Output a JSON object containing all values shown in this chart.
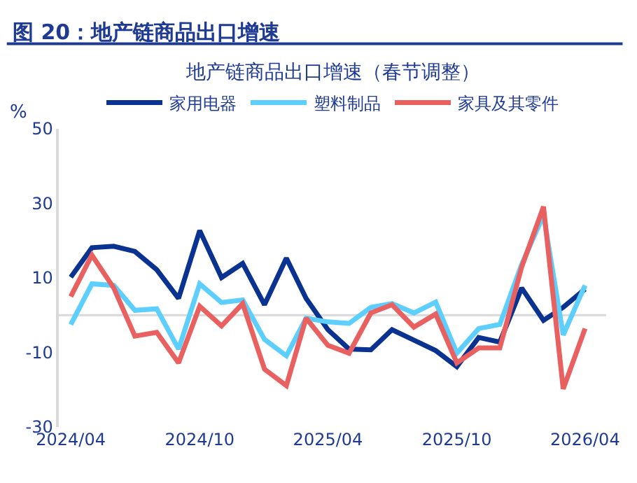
{
  "chart_data": {
    "type": "line",
    "title": "图 20：地产链商品出口增速",
    "subtitle": "地产链商品出口增速（春节调整）",
    "ylabel": "%",
    "x": [
      "2024-04",
      "2024-05",
      "2024-06",
      "2024-07",
      "2024-08",
      "2024-09",
      "2024-10",
      "2024-11",
      "2024-12",
      "2025-01",
      "2025-02",
      "2025-03",
      "2025-04",
      "2025-05",
      "2025-06",
      "2025-07",
      "2025-08",
      "2025-09",
      "2025-10",
      "2025-11",
      "2025-12",
      "2026-01",
      "2026-02",
      "2026-03",
      "2026-04"
    ],
    "series": [
      {
        "name": "家用电器",
        "color": "#0a3290",
        "values": [
          10.2,
          18.1,
          18.5,
          17.1,
          12.2,
          4.5,
          22.7,
          10.1,
          13.9,
          2.8,
          15.3,
          4.5,
          -3.9,
          -9.1,
          -9.3,
          -3.9,
          -6.7,
          -9.5,
          -13.8,
          -6.0,
          -7.2,
          7.3,
          -1.4,
          2.1,
          7.0
        ]
      },
      {
        "name": "塑料制品",
        "color": "#5ccfff",
        "values": [
          -2.5,
          8.4,
          8.0,
          1.3,
          1.7,
          -9.1,
          8.4,
          3.4,
          4.1,
          -6.5,
          -10.9,
          -0.8,
          -1.8,
          -2.2,
          2.1,
          3.1,
          0.6,
          3.5,
          -10.2,
          -3.6,
          -2.5,
          13.6,
          26.9,
          -5.3,
          8.0
        ]
      },
      {
        "name": "家具及其零件",
        "color": "#e8605f",
        "values": [
          5.0,
          16.1,
          7.3,
          -5.6,
          -4.6,
          -12.8,
          2.4,
          -2.9,
          3.1,
          -14.5,
          -18.9,
          -0.8,
          -8.1,
          -10.2,
          0.6,
          2.8,
          -3.2,
          0.3,
          -12.8,
          -8.8,
          -8.8,
          12.9,
          29.1,
          -19.8,
          -3.6
        ]
      }
    ],
    "xlim": [
      "2024-03-15",
      "2026-05-01"
    ],
    "xticks": [
      {
        "value": "2024-04",
        "label": "2024/04"
      },
      {
        "value": "2024-10",
        "label": "2024/10"
      },
      {
        "value": "2025-04",
        "label": "2025/04"
      },
      {
        "value": "2025-10",
        "label": "2025/10"
      },
      {
        "value": "2026-04",
        "label": "2026/04"
      }
    ],
    "ylim": [
      -30,
      50
    ],
    "yticks": [
      -30,
      -10,
      10,
      30,
      50
    ],
    "ref_lines": [
      {
        "axis": "y",
        "value": 0,
        "color": "#d9d9d9"
      }
    ],
    "grid": false,
    "legend": "top",
    "marker": "none",
    "line_style": "solid"
  }
}
